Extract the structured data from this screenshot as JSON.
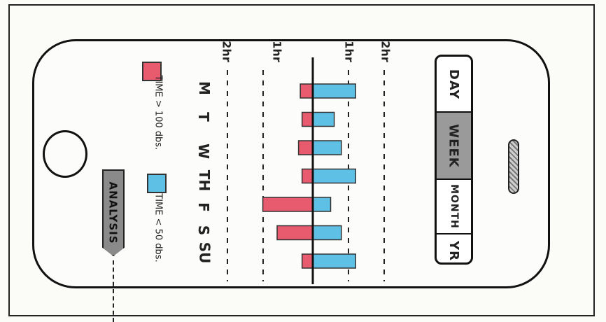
{
  "tabs": [
    {
      "label": "DAY",
      "active": false
    },
    {
      "label": "WEEK",
      "active": true
    },
    {
      "label": "MONTH",
      "active": false
    },
    {
      "label": "YR",
      "active": false
    }
  ],
  "actions": {
    "analysis_label": "ANALYSIS"
  },
  "legend": [
    {
      "label": "TIME > 100 dbs.",
      "color": "#e85a6e"
    },
    {
      "label": "TIME < 50 dbs.",
      "color": "#5fc0e6"
    }
  ],
  "chart_data": {
    "type": "bar",
    "categories": [
      "M",
      "T",
      "W",
      "TH",
      "F",
      "S",
      "SU"
    ],
    "scale_labels": [
      "2hr",
      "1hr",
      "1hr",
      "2hr"
    ],
    "series": [
      {
        "name": "TIME > 100 dbs.",
        "color": "#e85a6e",
        "values": [
          0.35,
          0.3,
          0.4,
          0.3,
          1.4,
          1.0,
          0.3
        ]
      },
      {
        "name": "TIME < 50 dbs.",
        "color": "#5fc0e6",
        "values": [
          1.2,
          0.6,
          0.8,
          1.2,
          0.5,
          0.8,
          1.2
        ]
      }
    ],
    "xlim": [
      -2.4,
      2.4
    ]
  }
}
